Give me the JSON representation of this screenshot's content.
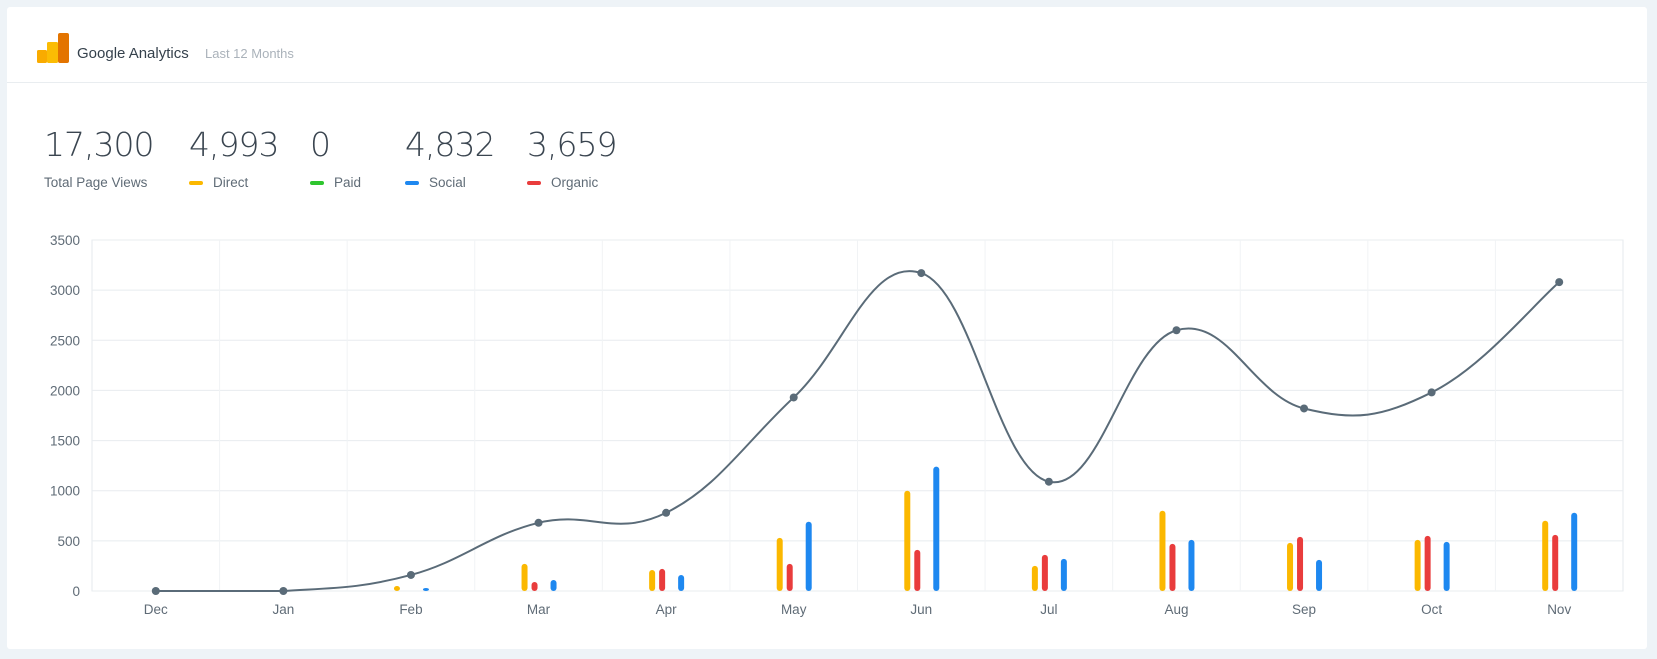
{
  "header": {
    "title": "Google Analytics",
    "subtitle": "Last 12 Months"
  },
  "stats": [
    {
      "value": "17,300",
      "label": "Total Page Views",
      "color": ""
    },
    {
      "value": "4,993",
      "label": "Direct",
      "color": "#fbb800"
    },
    {
      "value": "0",
      "label": "Paid",
      "color": "#2ec52e"
    },
    {
      "value": "4,832",
      "label": "Social",
      "color": "#1e88f0"
    },
    {
      "value": "3,659",
      "label": "Organic",
      "color": "#e93c3c"
    }
  ],
  "chart_data": {
    "type": "bar",
    "categories": [
      "Dec",
      "Jan",
      "Feb",
      "Mar",
      "Apr",
      "May",
      "Jun",
      "Jul",
      "Aug",
      "Sep",
      "Oct",
      "Nov"
    ],
    "ylim": [
      0,
      3500
    ],
    "yticks": [
      "0",
      "500",
      "1000",
      "1500",
      "2000",
      "2500",
      "3000",
      "3500"
    ],
    "grid": true,
    "series": [
      {
        "name": "Direct",
        "type": "bar",
        "color": "#fbb800",
        "values": [
          0,
          0,
          50,
          270,
          210,
          530,
          1000,
          250,
          800,
          480,
          510,
          700
        ]
      },
      {
        "name": "Organic",
        "type": "bar",
        "color": "#e93c3c",
        "values": [
          0,
          0,
          0,
          90,
          220,
          270,
          410,
          360,
          470,
          540,
          550,
          560
        ]
      },
      {
        "name": "Social",
        "type": "bar",
        "color": "#1e88f0",
        "values": [
          0,
          0,
          30,
          110,
          160,
          690,
          1240,
          320,
          510,
          310,
          490,
          780
        ]
      },
      {
        "name": "Total Page Views",
        "type": "line",
        "color": "#5a6b78",
        "values": [
          0,
          0,
          160,
          680,
          780,
          1930,
          3170,
          1090,
          2600,
          1820,
          1980,
          3080
        ]
      }
    ]
  }
}
